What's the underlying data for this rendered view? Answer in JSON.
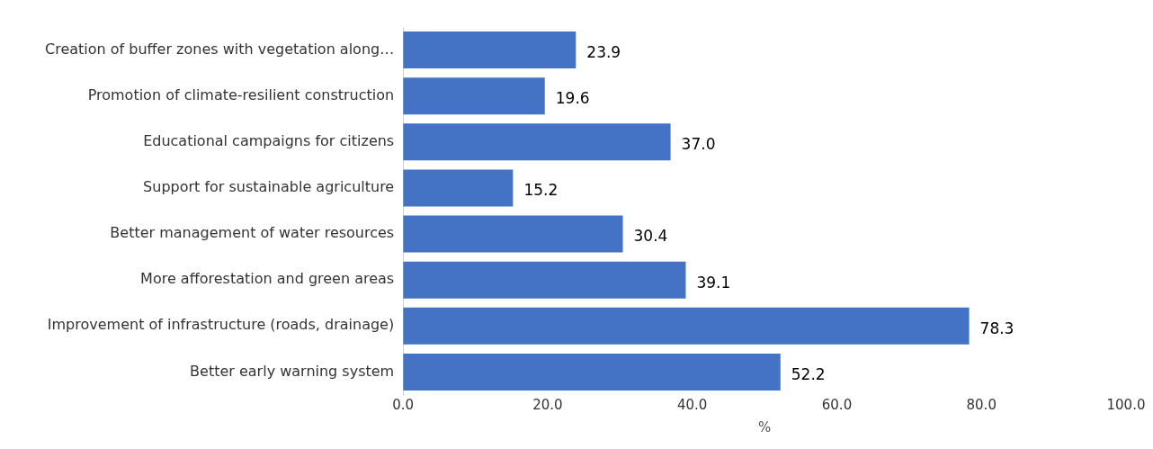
{
  "chart_data": {
    "type": "bar",
    "orientation": "horizontal",
    "xlabel": "%",
    "categories": [
      "Creation of buffer zones with vegetation along…",
      "Promotion of climate-resilient construction",
      "Educational campaigns for citizens",
      "Support for sustainable agriculture",
      "Better management of water resources",
      "More afforestation and green areas",
      "Improvement of infrastructure (roads, drainage)",
      "Better early warning system"
    ],
    "values": [
      23.9,
      19.6,
      37.0,
      15.2,
      30.4,
      39.1,
      78.3,
      52.2
    ],
    "value_labels": [
      "23.9",
      "19.6",
      "37.0",
      "15.2",
      "30.4",
      "39.1",
      "78.3",
      "52.2"
    ],
    "color": "#4472c4",
    "xlim": [
      0,
      100
    ],
    "xticks": [
      {
        "value": 0,
        "label": "0.0"
      },
      {
        "value": 20,
        "label": "20.0"
      },
      {
        "value": 40,
        "label": "40.0"
      },
      {
        "value": 60,
        "label": "60.0"
      },
      {
        "value": 80,
        "label": "80.0"
      },
      {
        "value": 100,
        "label": "100.0"
      }
    ],
    "grid": false,
    "legend": false
  }
}
